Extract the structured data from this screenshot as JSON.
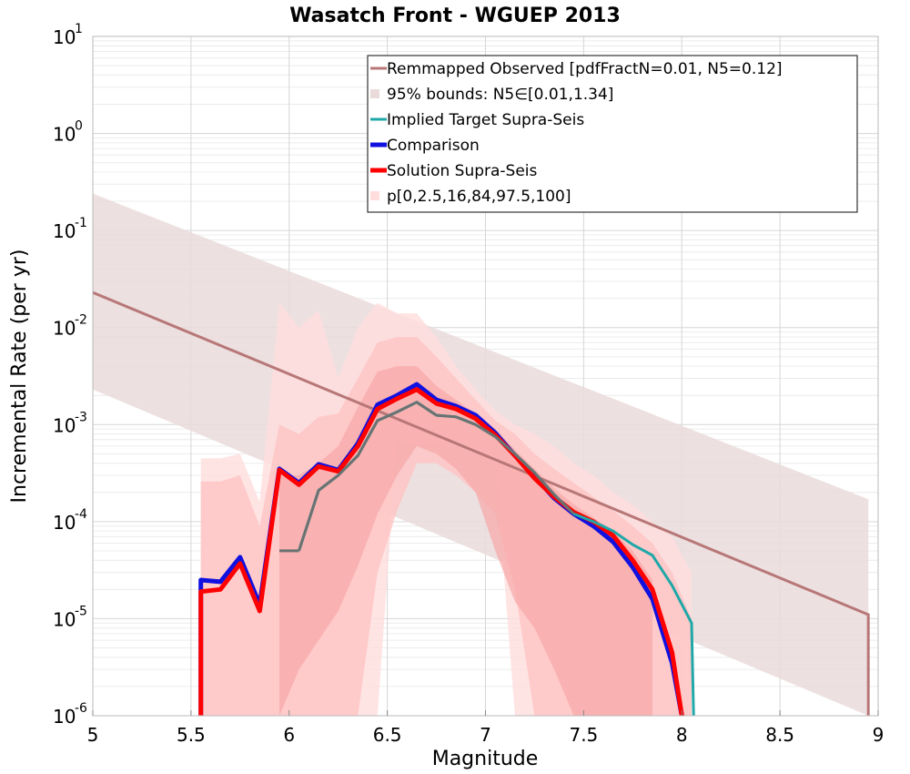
{
  "chart_data": {
    "type": "line",
    "title": "Wasatch Front - WGUEP 2013",
    "xlabel": "Magnitude",
    "ylabel": "Incremental Rate (per yr)",
    "xlim": [
      5,
      9
    ],
    "ylim": [
      1e-06,
      10
    ],
    "yscale": "log",
    "grid": true,
    "legend_position": "top-right",
    "x_ticks": [
      "5",
      "5.5",
      "6",
      "6.5",
      "7",
      "7.5",
      "8",
      "8.5",
      "9"
    ],
    "y_ticks": [
      {
        "base": "10",
        "exp": "-6"
      },
      {
        "base": "10",
        "exp": "-5"
      },
      {
        "base": "10",
        "exp": "-4"
      },
      {
        "base": "10",
        "exp": "-3"
      },
      {
        "base": "10",
        "exp": "-2"
      },
      {
        "base": "10",
        "exp": "-1"
      },
      {
        "base": "10",
        "exp": "0"
      },
      {
        "base": "10",
        "exp": "1"
      }
    ],
    "colors": {
      "remapped": "#b87777",
      "bounds95": "#eadada",
      "target": "#20a8a8",
      "target_overlap": "#6a7272",
      "comparison": "#1010e0",
      "solution": "#ff0000",
      "pband_outer": "#ffdddd",
      "pband_mid": "#ffc2c2",
      "pband_inner": "#f6a6a6"
    },
    "legend": [
      {
        "label": "Remmapped Observed [pdfFractN=0.01, N5=0.12]",
        "kind": "line",
        "color": "#b87777",
        "width": 3
      },
      {
        "label": "95% bounds: N5∈[0.01,1.34]",
        "kind": "band",
        "color": "#eadada"
      },
      {
        "label": "Implied Target Supra-Seis",
        "kind": "line",
        "color": "#20a8a8",
        "width": 3
      },
      {
        "label": "Comparison",
        "kind": "line",
        "color": "#1010e0",
        "width": 5
      },
      {
        "label": "Solution Supra-Seis",
        "kind": "line",
        "color": "#ff0000",
        "width": 5
      },
      {
        "label": "p[0,2.5,16,84,97.5,100]",
        "kind": "band",
        "color": "#ffdddd"
      }
    ],
    "remapped_observed": {
      "x": [
        5.0,
        8.95,
        8.95
      ],
      "y": [
        0.023,
        1.1e-05,
        1e-06
      ]
    },
    "bounds_95": {
      "x": [
        5.0,
        8.95
      ],
      "upper": [
        0.24,
        0.00017
      ],
      "lower": [
        0.0023,
        5e-07
      ]
    },
    "implied_target": {
      "x": [
        6.05,
        6.15,
        6.25,
        6.35,
        6.45,
        6.55,
        6.65,
        6.75,
        6.85,
        6.95,
        7.05,
        7.15,
        7.25,
        7.35,
        7.45,
        7.55,
        7.65,
        7.75,
        7.85,
        7.95,
        8.05,
        8.06
      ],
      "y": [
        5e-05,
        0.00021,
        0.0003,
        0.00048,
        0.0011,
        0.00135,
        0.0017,
        0.00125,
        0.0012,
        0.001,
        0.00075,
        0.0005,
        0.00032,
        0.00019,
        0.00012,
        0.0001,
        8e-05,
        5.8e-05,
        4.5e-05,
        2.2e-05,
        9e-06,
        1e-06
      ]
    },
    "target_low_segment": {
      "x": [
        5.95,
        6.05
      ],
      "y": [
        5e-05,
        5e-05
      ]
    },
    "comparison": {
      "x": [
        5.55,
        5.55,
        5.65,
        5.75,
        5.85,
        5.95,
        6.05,
        6.15,
        6.25,
        6.35,
        6.45,
        6.55,
        6.65,
        6.75,
        6.85,
        6.95,
        7.05,
        7.15,
        7.25,
        7.35,
        7.45,
        7.55,
        7.65,
        7.75,
        7.85,
        7.95,
        8.0
      ],
      "y": [
        1e-06,
        2.5e-05,
        2.4e-05,
        4.3e-05,
        1.4e-05,
        0.00035,
        0.00025,
        0.00039,
        0.00034,
        0.00064,
        0.0016,
        0.002,
        0.0026,
        0.0018,
        0.00155,
        0.00125,
        0.00082,
        0.00048,
        0.00029,
        0.000175,
        0.00012,
        9e-05,
        6.2e-05,
        3.4e-05,
        1.6e-05,
        3.5e-06,
        1e-06
      ]
    },
    "solution": {
      "x": [
        5.55,
        5.55,
        5.65,
        5.75,
        5.85,
        5.95,
        6.05,
        6.15,
        6.25,
        6.35,
        6.45,
        6.55,
        6.65,
        6.75,
        6.85,
        6.95,
        7.05,
        7.15,
        7.25,
        7.35,
        7.45,
        7.55,
        7.65,
        7.75,
        7.85,
        7.95,
        8.0
      ],
      "y": [
        1e-06,
        1.9e-05,
        2e-05,
        3.7e-05,
        1.2e-05,
        0.00034,
        0.00024,
        0.00037,
        0.00033,
        0.0006,
        0.00145,
        0.00185,
        0.0023,
        0.00165,
        0.00145,
        0.00115,
        0.00078,
        0.00048,
        0.00028,
        0.00018,
        0.000125,
        0.0001,
        7.2e-05,
        4e-05,
        2e-05,
        4.5e-06,
        1e-06
      ]
    },
    "p_band_outer": {
      "x": [
        5.55,
        5.65,
        5.75,
        5.85,
        5.95,
        6.05,
        6.15,
        6.25,
        6.35,
        6.45,
        6.55,
        6.65,
        6.75,
        6.85,
        6.95,
        7.05,
        7.15,
        7.25,
        7.35,
        7.45,
        7.55,
        7.65,
        7.75,
        7.85,
        7.95,
        8.05
      ],
      "upper": [
        0.00045,
        0.00045,
        0.0005,
        0.00016,
        0.018,
        0.01,
        0.015,
        0.003,
        0.01,
        0.018,
        0.014,
        0.014,
        0.008,
        0.004,
        0.0023,
        0.0014,
        0.001,
        0.0008,
        0.0006,
        0.0004,
        0.0003,
        0.0002,
        0.00015,
        0.0001,
        7e-05,
        3e-05
      ],
      "lower": [
        1e-06,
        1e-06,
        1e-06,
        1e-06,
        1e-06,
        1e-06,
        1e-06,
        1e-06,
        1e-06,
        1e-06,
        0.0007,
        0.0006,
        0.0006,
        0.0006,
        0.0005,
        0.0004,
        1e-06,
        1e-06,
        1e-06,
        1e-06,
        1e-06,
        1e-06,
        1e-06,
        1e-06,
        1e-06,
        1e-06
      ]
    },
    "p_band_mid": {
      "x": [
        5.55,
        5.65,
        5.75,
        5.85,
        5.95,
        6.05,
        6.15,
        6.25,
        6.35,
        6.45,
        6.55,
        6.65,
        6.75,
        6.85,
        6.95,
        7.05,
        7.15,
        7.25,
        7.35,
        7.45,
        7.55,
        7.65,
        7.75,
        7.85,
        7.95,
        8.05
      ],
      "upper": [
        0.00026,
        0.00026,
        0.0003,
        9e-05,
        0.001,
        0.0008,
        0.0012,
        0.0013,
        0.003,
        0.007,
        0.008,
        0.008,
        0.005,
        0.003,
        0.0018,
        0.0011,
        0.0008,
        0.0005,
        0.00035,
        0.00025,
        0.00018,
        0.00013,
        9e-05,
        6e-05,
        3e-05,
        1e-05
      ],
      "lower": [
        1e-06,
        1e-06,
        1e-06,
        1e-06,
        1e-06,
        1e-06,
        1e-06,
        1e-06,
        1e-06,
        3e-05,
        0.00013,
        0.0004,
        0.0004,
        0.0003,
        0.0002,
        0.00012,
        2e-05,
        1e-06,
        1e-06,
        1e-06,
        1e-06,
        1e-06,
        1e-06,
        1e-06,
        1e-06,
        1e-06
      ]
    },
    "p_band_inner": {
      "x": [
        5.95,
        6.05,
        6.15,
        6.25,
        6.35,
        6.45,
        6.55,
        6.65,
        6.75,
        6.85,
        6.95,
        7.05,
        7.15,
        7.25,
        7.35,
        7.45,
        7.55,
        7.65,
        7.75,
        7.85
      ],
      "upper": [
        0.0003,
        0.0003,
        0.0004,
        0.0006,
        0.0015,
        0.0035,
        0.004,
        0.004,
        0.0025,
        0.0018,
        0.0013,
        0.0009,
        0.00055,
        0.00035,
        0.00022,
        0.00015,
        0.00011,
        8e-05,
        5e-05,
        2.5e-05
      ],
      "lower": [
        1e-06,
        3e-06,
        6e-06,
        1.2e-05,
        3.5e-05,
        0.00012,
        0.0003,
        0.0006,
        0.0005,
        0.00035,
        0.0002,
        5e-05,
        1.5e-05,
        8e-06,
        3e-06,
        1e-06,
        1e-06,
        1e-06,
        1e-06,
        1e-06
      ]
    }
  }
}
